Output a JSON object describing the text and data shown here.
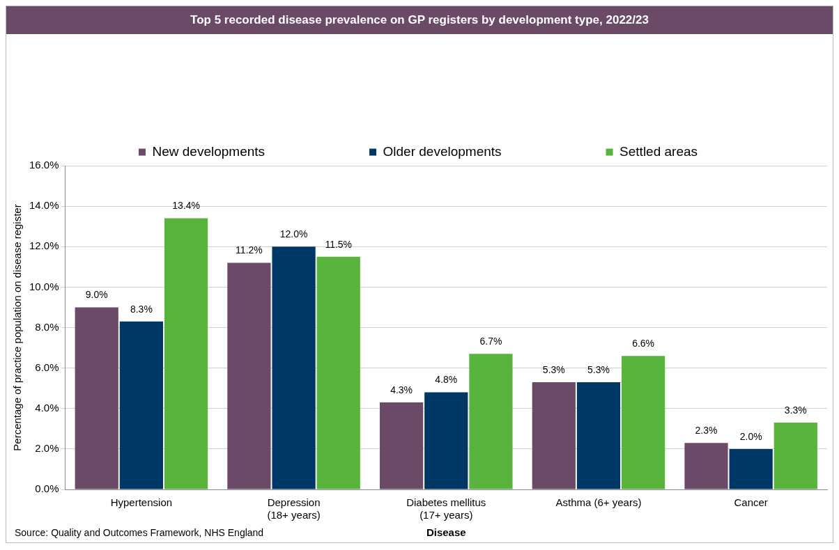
{
  "chart_data": {
    "type": "bar",
    "title": "Top 5 recorded disease prevalence on GP registers by development type, 2022/23",
    "xlabel": "Disease",
    "ylabel": "Percentage of practice population on disease register",
    "categories": [
      "Hypertension",
      "Depression\n(18+ years)",
      "Diabetes mellitus\n(17+ years)",
      "Asthma (6+ years)",
      "Cancer"
    ],
    "series": [
      {
        "name": "New developments",
        "color": "#6b4a68",
        "values": [
          9.0,
          11.2,
          4.3,
          5.3,
          2.3
        ],
        "value_labels": [
          "9.0%",
          "11.2%",
          "4.3%",
          "5.3%",
          "2.3%"
        ]
      },
      {
        "name": "Older developments",
        "color": "#003865",
        "values": [
          8.3,
          12.0,
          4.8,
          5.3,
          2.0
        ],
        "value_labels": [
          "8.3%",
          "12.0%",
          "4.8%",
          "5.3%",
          "2.0%"
        ]
      },
      {
        "name": "Settled areas",
        "color": "#58b43c",
        "values": [
          13.4,
          11.5,
          6.7,
          6.6,
          3.3
        ],
        "value_labels": [
          "13.4%",
          "11.5%",
          "6.7%",
          "6.6%",
          "3.3%"
        ]
      }
    ],
    "ylim": [
      0,
      16
    ],
    "yticks": [
      {
        "value": 0,
        "label": "0.0%"
      },
      {
        "value": 2,
        "label": "2.0%"
      },
      {
        "value": 4,
        "label": "4.0%"
      },
      {
        "value": 6,
        "label": "6.0%"
      },
      {
        "value": 8,
        "label": "8.0%"
      },
      {
        "value": 10,
        "label": "10.0%"
      },
      {
        "value": 12,
        "label": "12.0%"
      },
      {
        "value": 14,
        "label": "14.0%"
      },
      {
        "value": 16,
        "label": "16.0%"
      }
    ],
    "grid": "y",
    "legend": "top",
    "annotations": [
      "Source: Quality and Outcomes Framework, NHS England"
    ]
  }
}
